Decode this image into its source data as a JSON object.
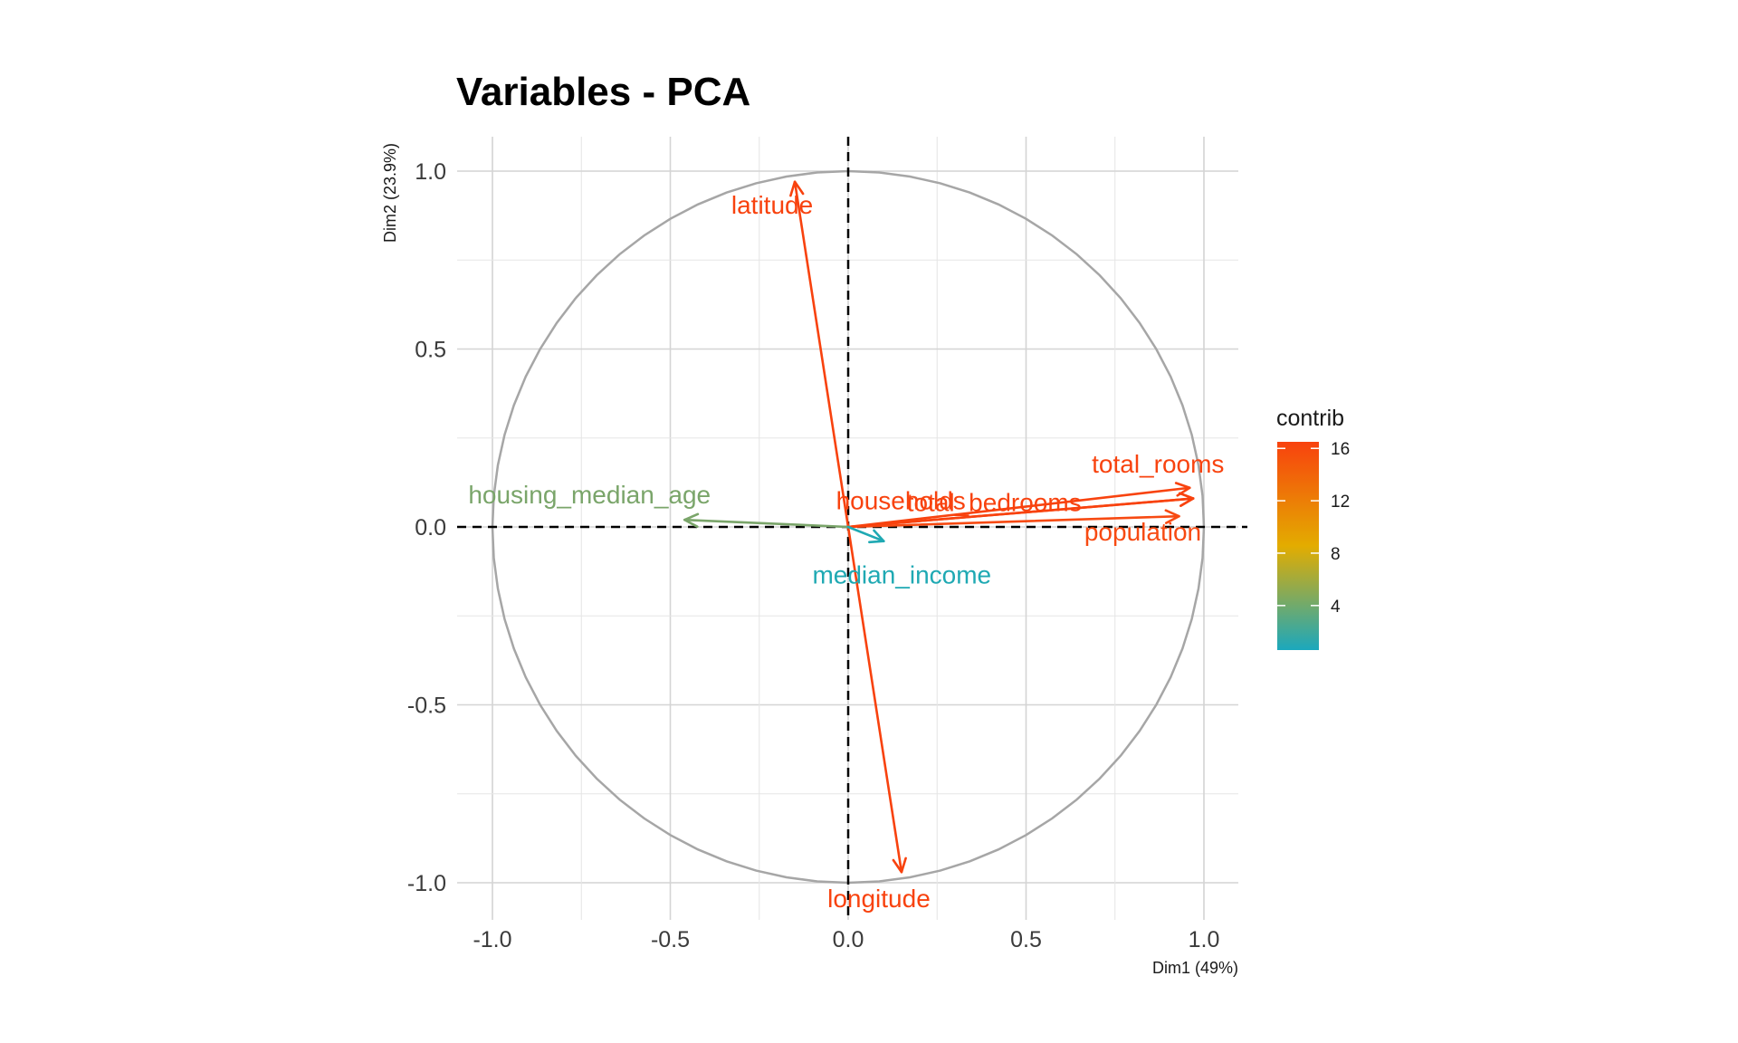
{
  "chart_data": {
    "type": "scatter",
    "subtype": "pca-variable-correlation-circle",
    "title": "Variables - PCA",
    "xlabel": "Dim1 (49%)",
    "ylabel": "Dim2 (23.9%)",
    "xlim": [
      -1.1,
      1.1
    ],
    "ylim": [
      -1.1,
      1.1
    ],
    "x_ticks": [
      {
        "value": -1.0,
        "label": "-1.0"
      },
      {
        "value": -0.5,
        "label": "-0.5"
      },
      {
        "value": 0.0,
        "label": "0.0"
      },
      {
        "value": 0.5,
        "label": "0.5"
      },
      {
        "value": 1.0,
        "label": "1.0"
      }
    ],
    "y_ticks": [
      {
        "value": 1.0,
        "label": "1.0"
      },
      {
        "value": 0.5,
        "label": "0.5"
      },
      {
        "value": 0.0,
        "label": "0.0"
      },
      {
        "value": -0.5,
        "label": "-0.5"
      },
      {
        "value": -1.0,
        "label": "-1.0"
      }
    ],
    "grid": true,
    "unit_circle": true,
    "reference_lines": [
      0,
      0
    ],
    "variables": [
      {
        "name": "latitude",
        "x": -0.15,
        "y": 0.97,
        "contrib": 16.3,
        "color": "#f8420e"
      },
      {
        "name": "longitude",
        "x": 0.15,
        "y": -0.97,
        "contrib": 16.3,
        "color": "#f8420e"
      },
      {
        "name": "total_rooms",
        "x": 0.96,
        "y": 0.11,
        "contrib": 16.2,
        "color": "#f8430f"
      },
      {
        "name": "total_bedrooms",
        "x": 0.97,
        "y": 0.08,
        "contrib": 16.5,
        "color": "#f8420e"
      },
      {
        "name": "population",
        "x": 0.93,
        "y": 0.03,
        "contrib": 14.4,
        "color": "#f74a12"
      },
      {
        "name": "households",
        "x": 0.97,
        "y": 0.08,
        "contrib": 16.4,
        "color": "#f8420e"
      },
      {
        "name": "housing_median_age",
        "x": -0.46,
        "y": 0.02,
        "contrib": 3.6,
        "color": "#7aa56a"
      },
      {
        "name": "median_income",
        "x": 0.1,
        "y": -0.04,
        "contrib": 0.6,
        "color": "#1fa9b3"
      }
    ],
    "legend": {
      "title": "contrib",
      "position": "right",
      "range": [
        0.6,
        16.5
      ],
      "ticks": [
        "16",
        "12",
        "8",
        "4"
      ],
      "tick_values": [
        16,
        12,
        8,
        4
      ],
      "colors": [
        "#1ba8bd",
        "#e3ac00",
        "#f8420e"
      ]
    }
  }
}
